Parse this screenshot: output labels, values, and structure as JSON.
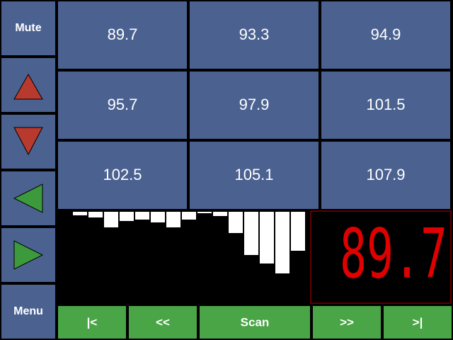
{
  "side_buttons": {
    "mute": "Mute",
    "menu": "Menu"
  },
  "presets": [
    [
      "89.7",
      "93.3",
      "94.9"
    ],
    [
      "95.7",
      "97.9",
      "101.5"
    ],
    [
      "102.5",
      "105.1",
      "107.9"
    ]
  ],
  "signal_levels": [
    5,
    8,
    22,
    13,
    11,
    15,
    22,
    11,
    2,
    6,
    30,
    61,
    73,
    87,
    55
  ],
  "display": {
    "frequency": "89.7"
  },
  "transport": [
    "|<",
    "<<",
    "Scan",
    ">>",
    ">|"
  ]
}
